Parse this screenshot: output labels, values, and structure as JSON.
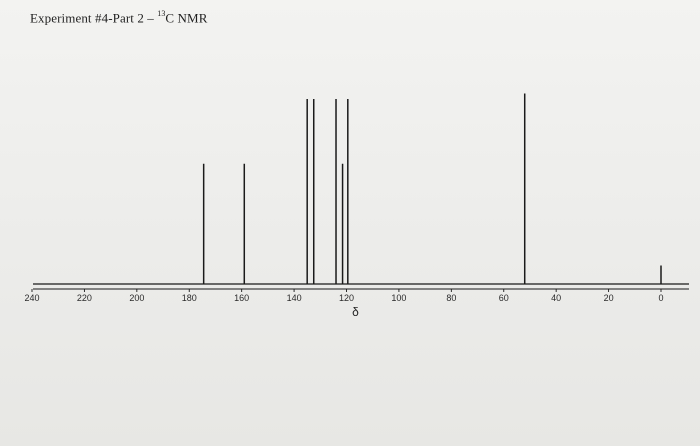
{
  "header": {
    "title_prefix": "Experiment #4-Part 2 – ",
    "title_superscript": "13",
    "title_suffix": "C NMR"
  },
  "chart_data": {
    "type": "bar",
    "title": "Experiment #4-Part 2 – 13C NMR",
    "xlabel": "δ",
    "ylabel": "",
    "xlim": [
      240,
      0
    ],
    "x_reversed": true,
    "ylim": [
      0,
      100
    ],
    "x_ticks": [
      240,
      220,
      200,
      180,
      160,
      140,
      120,
      100,
      80,
      60,
      40,
      20,
      0
    ],
    "x_tick_labels": [
      "240",
      "220",
      "200",
      "180",
      "160",
      "140",
      "120",
      "100",
      "80",
      "60",
      "40",
      "20",
      "0"
    ],
    "peaks": [
      {
        "x": 174.5,
        "y": 65
      },
      {
        "x": 159.0,
        "y": 65
      },
      {
        "x": 135.0,
        "y": 100
      },
      {
        "x": 132.5,
        "y": 100
      },
      {
        "x": 124.0,
        "y": 100
      },
      {
        "x": 121.5,
        "y": 65
      },
      {
        "x": 119.5,
        "y": 100
      },
      {
        "x": 52.0,
        "y": 103
      },
      {
        "x": 0.0,
        "y": 10
      }
    ],
    "grid": false,
    "colors": {
      "peak": "#1a1a1a",
      "axis": "#1a1a1a"
    }
  }
}
